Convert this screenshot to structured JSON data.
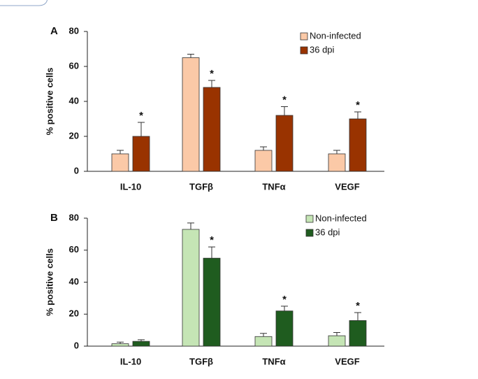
{
  "chart_data": [
    {
      "type": "bar",
      "panel_label": "A",
      "ylabel": "% positive cells",
      "categories": [
        "IL-10",
        "TGFβ",
        "TNFα",
        "VEGF"
      ],
      "series": [
        {
          "name": "Non-infected",
          "color": "#fbc9a7",
          "values": [
            10,
            65,
            12,
            10
          ],
          "errors": [
            2,
            2,
            2,
            2
          ],
          "annotations": [
            null,
            null,
            null,
            null
          ]
        },
        {
          "name": "36 dpi",
          "color": "#993300",
          "values": [
            20,
            48,
            32,
            30
          ],
          "errors": [
            8,
            4,
            5,
            4
          ],
          "annotations": [
            "*",
            "*",
            "*",
            "*"
          ]
        }
      ],
      "ylim": [
        0,
        80
      ],
      "yticks": [
        0,
        20,
        40,
        60,
        80
      ],
      "legend": "upper right"
    },
    {
      "type": "bar",
      "panel_label": "B",
      "ylabel": "% positive cells",
      "categories": [
        "IL-10",
        "TGFβ",
        "TNFα",
        "VEGF"
      ],
      "series": [
        {
          "name": "Non-infected",
          "color": "#c5e5b5",
          "values": [
            1.5,
            73,
            6,
            6.5
          ],
          "errors": [
            1,
            4,
            2,
            2
          ],
          "annotations": [
            null,
            null,
            null,
            null
          ]
        },
        {
          "name": "36 dpi",
          "color": "#1f5c1f",
          "values": [
            3,
            55,
            22,
            16
          ],
          "errors": [
            1,
            7,
            3,
            5
          ],
          "annotations": [
            null,
            "*",
            "*",
            "*"
          ]
        }
      ],
      "ylim": [
        0,
        80
      ],
      "yticks": [
        0,
        20,
        40,
        60,
        80
      ],
      "legend": "upper right"
    }
  ]
}
